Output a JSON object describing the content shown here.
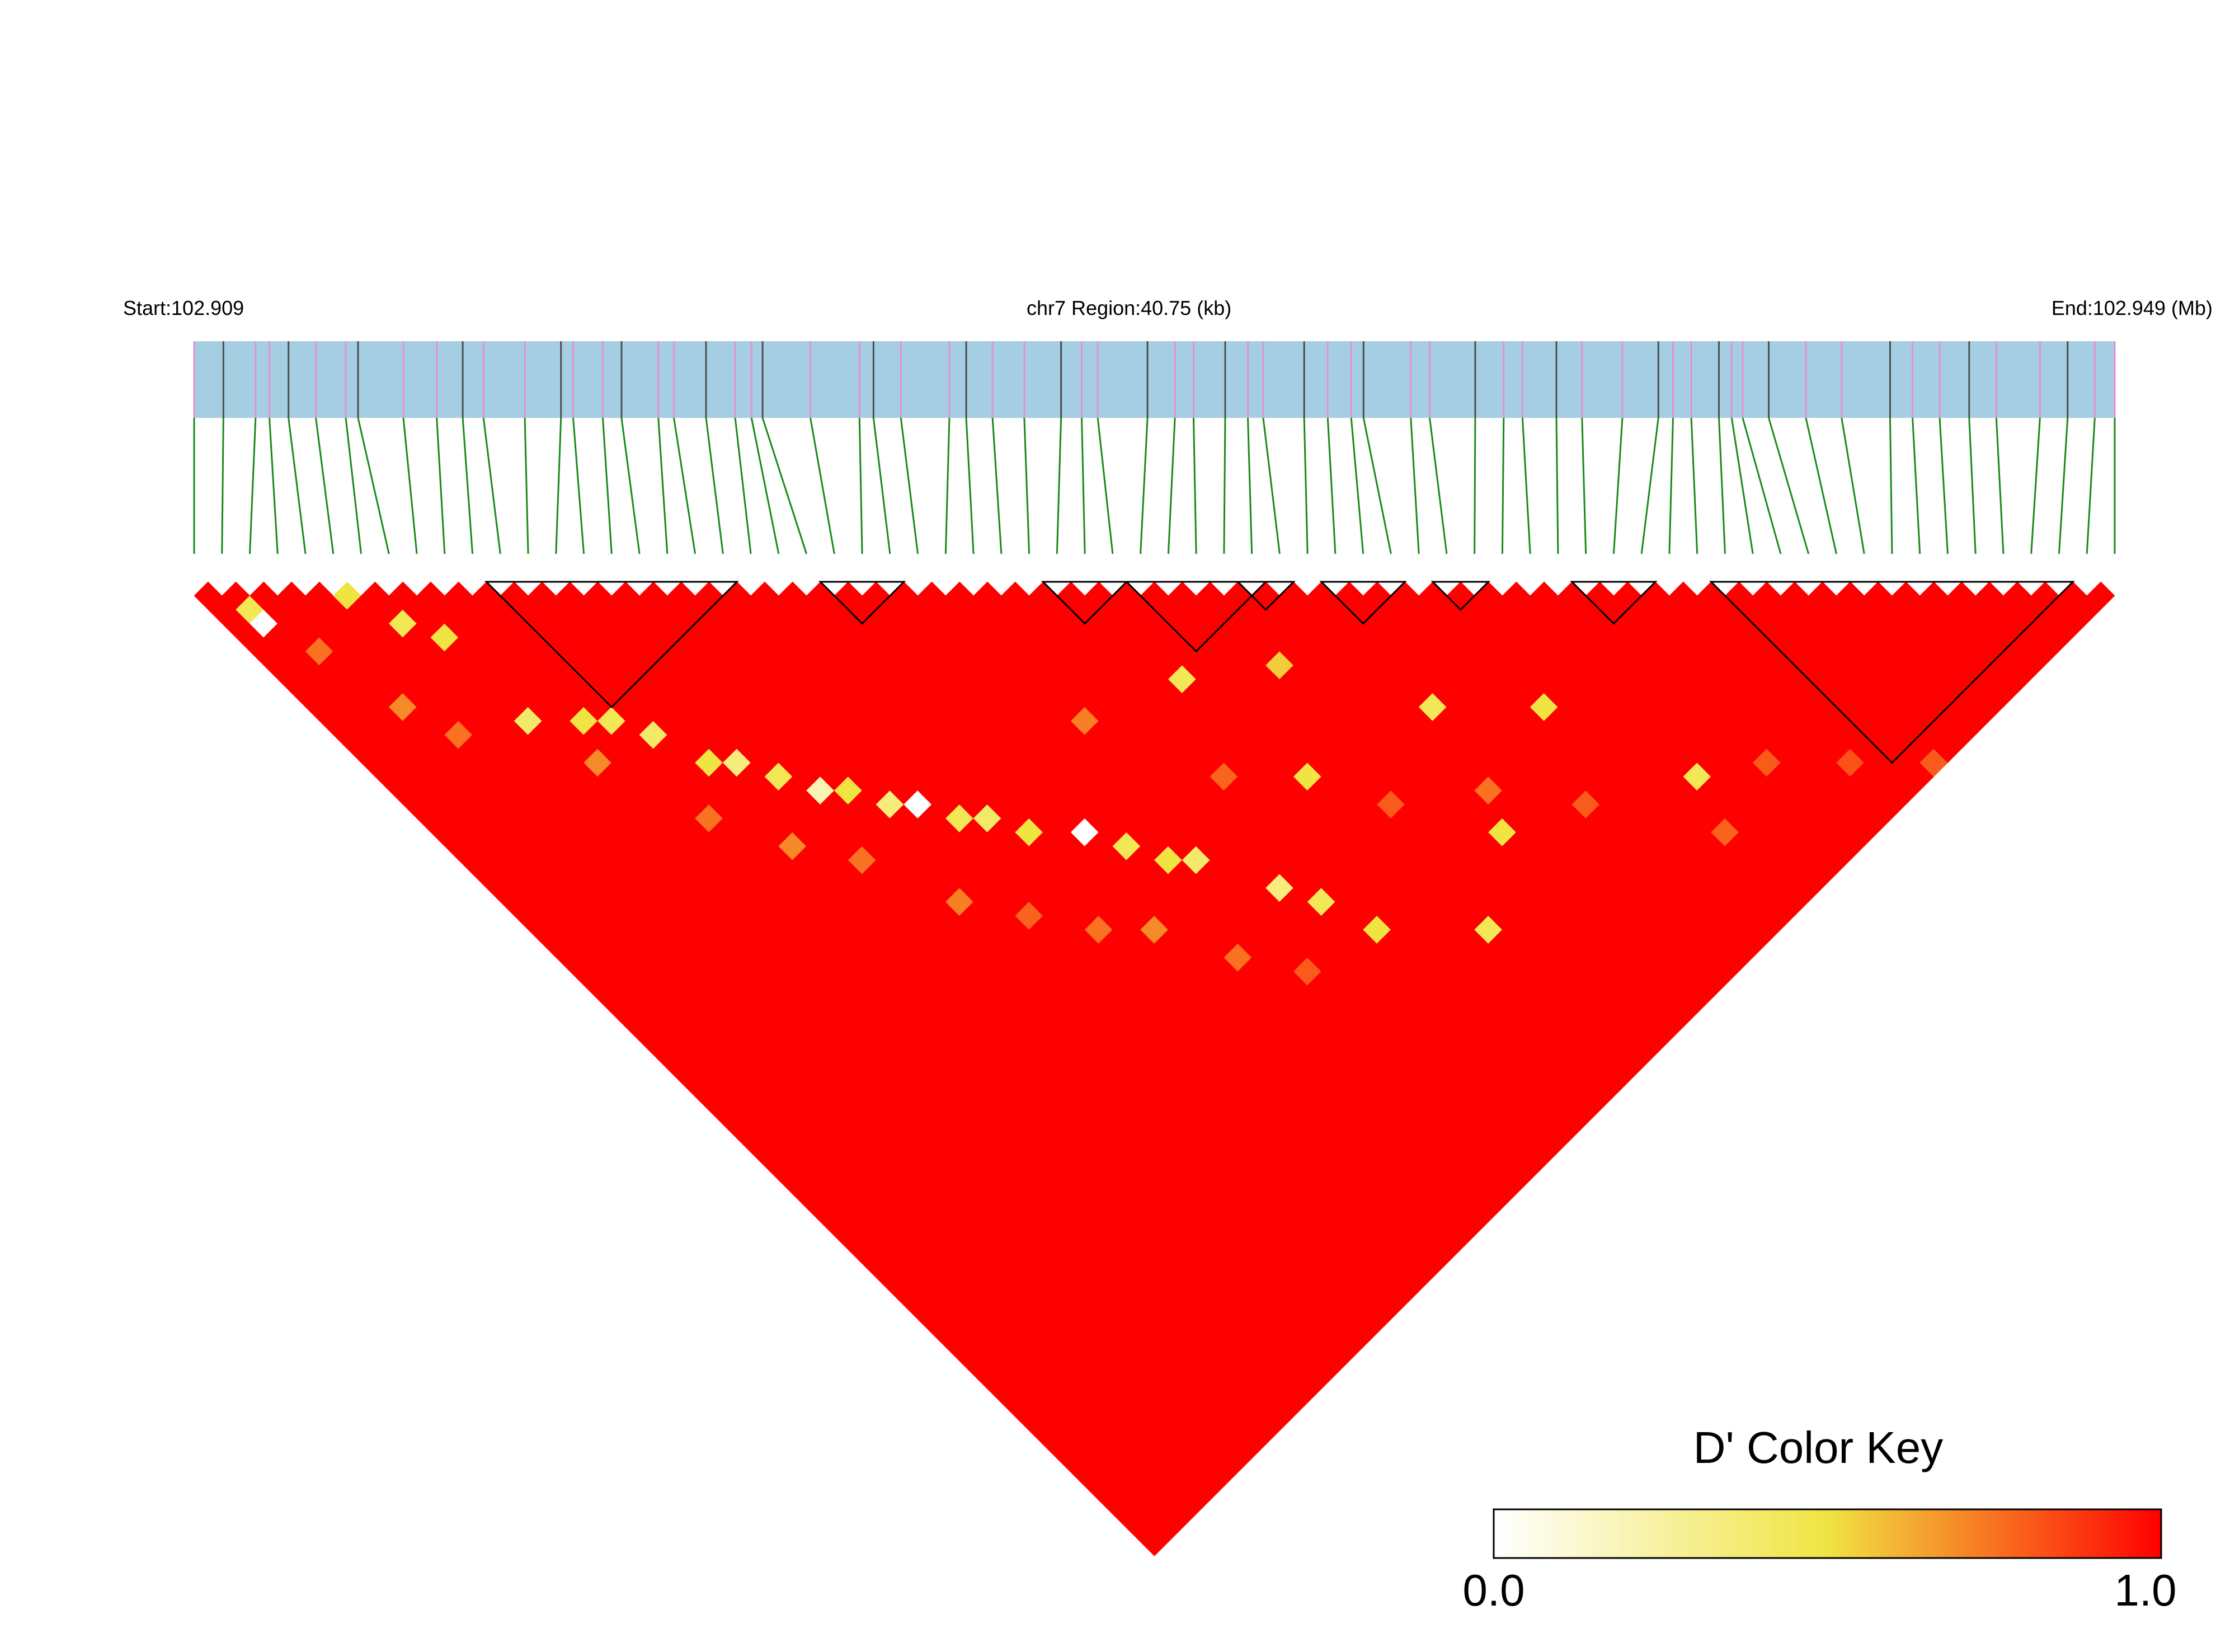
{
  "header": {
    "start_label": "Start:102.909",
    "region_label": "chr7 Region:40.75 (kb)",
    "end_label": "End:102.949 (Mb)"
  },
  "region": {
    "chromosome": "chr7",
    "start_mb": 102.909,
    "end_mb": 102.949,
    "length_kb": 40.75,
    "snp_count": 70
  },
  "color_key": {
    "title": "D' Color Key",
    "min_label": "0.0",
    "max_label": "1.0",
    "min": 0.0,
    "max": 1.0,
    "stops": [
      {
        "value": 0.0,
        "color": "#ffffff"
      },
      {
        "value": 0.5,
        "color": "#f0e442"
      },
      {
        "value": 1.0,
        "color": "#ff0000"
      }
    ]
  },
  "colors": {
    "region_bar": "#a6cee3",
    "snp_tick_pink": "#e58fd6",
    "snp_tick_dark": "#4d4d4d",
    "connector": "#1a8a1a",
    "ld_high": "#ff0000",
    "block_outline": "#000000"
  },
  "haplotype_blocks": [
    {
      "from": 11,
      "to": 18
    },
    {
      "from": 23,
      "to": 24
    },
    {
      "from": 31,
      "to": 32
    },
    {
      "from": 34,
      "to": 37
    },
    {
      "from": 38,
      "to": 38
    },
    {
      "from": 41,
      "to": 42
    },
    {
      "from": 45,
      "to": 45
    },
    {
      "from": 50,
      "to": 51
    },
    {
      "from": 55,
      "to": 66
    }
  ],
  "low_ld_pairs": [
    {
      "i": 1,
      "j": 3,
      "d": 0.0
    },
    {
      "i": 1,
      "j": 2,
      "d": 0.45
    },
    {
      "i": 5,
      "j": 5,
      "d": 0.5
    },
    {
      "i": 6,
      "j": 8,
      "d": 0.45
    },
    {
      "i": 7,
      "j": 10,
      "d": 0.5
    },
    {
      "i": 7,
      "j": 16,
      "d": 0.4
    },
    {
      "i": 9,
      "j": 18,
      "d": 0.5
    },
    {
      "i": 10,
      "j": 19,
      "d": 0.45
    },
    {
      "i": 11,
      "j": 21,
      "d": 0.4
    },
    {
      "i": 12,
      "j": 24,
      "d": 0.5
    },
    {
      "i": 13,
      "j": 25,
      "d": 0.35
    },
    {
      "i": 14,
      "j": 27,
      "d": 0.45
    },
    {
      "i": 15,
      "j": 29,
      "d": 0.2
    },
    {
      "i": 16,
      "j": 30,
      "d": 0.5
    },
    {
      "i": 17,
      "j": 32,
      "d": 0.35
    },
    {
      "i": 18,
      "j": 33,
      "d": 0.0
    },
    {
      "i": 19,
      "j": 35,
      "d": 0.45
    },
    {
      "i": 20,
      "j": 36,
      "d": 0.4
    },
    {
      "i": 21,
      "j": 38,
      "d": 0.5
    },
    {
      "i": 23,
      "j": 40,
      "d": 0.0
    },
    {
      "i": 24,
      "j": 42,
      "d": 0.45
    },
    {
      "i": 25,
      "j": 44,
      "d": 0.5
    },
    {
      "i": 26,
      "j": 45,
      "d": 0.4
    },
    {
      "i": 28,
      "j": 49,
      "d": 0.35
    },
    {
      "i": 29,
      "j": 51,
      "d": 0.45
    },
    {
      "i": 30,
      "j": 54,
      "d": 0.5
    },
    {
      "i": 32,
      "j": 38,
      "d": 0.45
    },
    {
      "i": 33,
      "j": 46,
      "d": 0.5
    },
    {
      "i": 34,
      "j": 58,
      "d": 0.45
    },
    {
      "i": 36,
      "j": 41,
      "d": 0.55
    },
    {
      "i": 38,
      "j": 55,
      "d": 0.5
    },
    {
      "i": 40,
      "j": 48,
      "d": 0.45
    },
    {
      "i": 44,
      "j": 52,
      "d": 0.5
    },
    {
      "i": 47,
      "j": 60,
      "d": 0.45
    }
  ],
  "medium_ld_pairs": [
    {
      "i": 2,
      "j": 6,
      "d": 0.75
    },
    {
      "i": 3,
      "j": 11,
      "d": 0.7
    },
    {
      "i": 4,
      "j": 14,
      "d": 0.75
    },
    {
      "i": 8,
      "j": 20,
      "d": 0.7
    },
    {
      "i": 10,
      "j": 26,
      "d": 0.75
    },
    {
      "i": 12,
      "j": 30,
      "d": 0.7
    },
    {
      "i": 14,
      "j": 33,
      "d": 0.75
    },
    {
      "i": 16,
      "j": 38,
      "d": 0.72
    },
    {
      "i": 18,
      "j": 41,
      "d": 0.78
    },
    {
      "i": 20,
      "j": 44,
      "d": 0.75
    },
    {
      "i": 22,
      "j": 46,
      "d": 0.7
    },
    {
      "i": 24,
      "j": 50,
      "d": 0.75
    },
    {
      "i": 26,
      "j": 53,
      "d": 0.8
    },
    {
      "i": 27,
      "j": 36,
      "d": 0.72
    },
    {
      "i": 30,
      "j": 43,
      "d": 0.78
    },
    {
      "i": 35,
      "j": 50,
      "d": 0.8
    },
    {
      "i": 39,
      "j": 53,
      "d": 0.75
    },
    {
      "i": 42,
      "j": 57,
      "d": 0.8
    },
    {
      "i": 46,
      "j": 63,
      "d": 0.78
    },
    {
      "i": 50,
      "j": 62,
      "d": 0.8
    },
    {
      "i": 53,
      "j": 65,
      "d": 0.82
    },
    {
      "i": 56,
      "j": 68,
      "d": 0.8
    }
  ]
}
